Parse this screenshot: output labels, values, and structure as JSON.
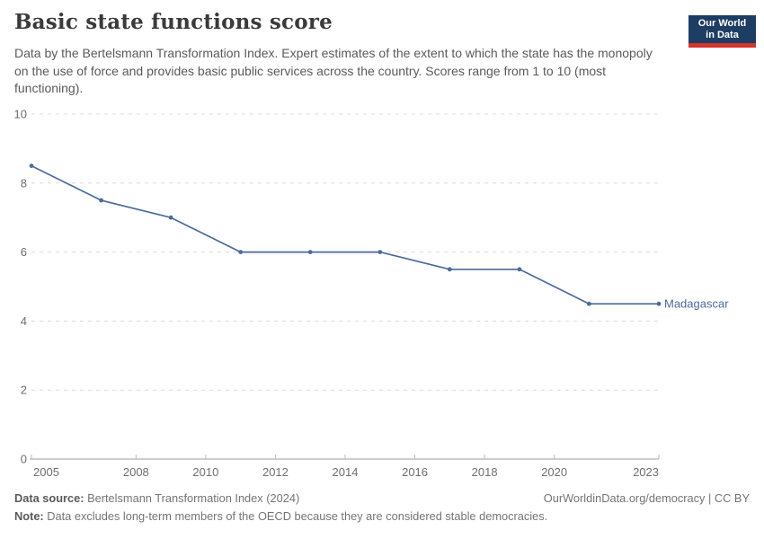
{
  "header": {
    "title": "Basic state functions score",
    "subtitle": "Data by the Bertelsmann Transformation Index. Expert estimates of the extent to which the state has the monopoly on the use of force and provides basic public services across the country. Scores range from 1 to 10 (most functioning).",
    "logo": {
      "line1": "Our World",
      "line2": "in Data",
      "bg_color": "#1d3d63",
      "accent_color": "#d1352b"
    }
  },
  "chart_data": {
    "type": "line",
    "title": "Basic state functions score",
    "x": [
      2005,
      2007,
      2009,
      2011,
      2013,
      2015,
      2017,
      2019,
      2021,
      2023
    ],
    "series": [
      {
        "name": "Madagascar",
        "color": "#4c6a9c",
        "values": [
          8.5,
          7.5,
          7,
          6,
          6,
          6,
          5.5,
          5.5,
          4.5,
          4.5
        ]
      }
    ],
    "xlabel": "",
    "ylabel": "",
    "xlim": [
      2005,
      2023
    ],
    "ylim": [
      0,
      10
    ],
    "x_ticks": [
      2005,
      2008,
      2010,
      2012,
      2014,
      2016,
      2018,
      2020,
      2023
    ],
    "y_ticks": [
      0,
      2,
      4,
      6,
      8,
      10
    ],
    "grid": "horizontal-dashed",
    "legend": "end-of-line-label",
    "colors": {
      "axis": "#9e9e9e",
      "tick": "#bdbdbd",
      "gridline": "#dcdcdc",
      "tick_label": "#6e6e6e"
    }
  },
  "footer": {
    "source_label": "Data source:",
    "source_text": " Bertelsmann Transformation Index (2024)",
    "credit": "OurWorldinData.org/democracy | CC BY",
    "note_label": "Note:",
    "note_text": " Data excludes long-term members of the OECD because they are considered stable democracies."
  }
}
